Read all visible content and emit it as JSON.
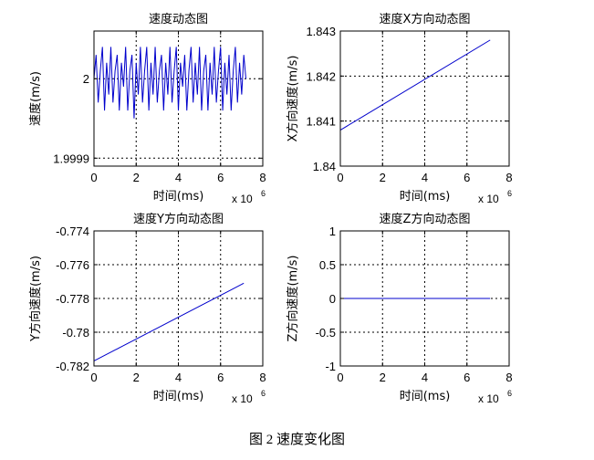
{
  "figure": {
    "caption": "图 2  速度变化图"
  },
  "colors": {
    "line": "#0000cc",
    "axis": "#000000",
    "background": "#ffffff"
  },
  "chart_data": [
    {
      "type": "line",
      "title": "速度动态图",
      "xlabel": "时间(ms)",
      "ylabel": "速度(m/s)",
      "x_multiplier": "x 10",
      "x_multiplier_exp": "6",
      "xlim": [
        0,
        8
      ],
      "ylim": [
        1.99989,
        2.00006
      ],
      "xticks": [
        0,
        2,
        4,
        6,
        8
      ],
      "xtick_labels": [
        "0",
        "2",
        "4",
        "6",
        "8"
      ],
      "yticks": [
        1.9999,
        2.0
      ],
      "ytick_labels": [
        "1.9999",
        "2"
      ],
      "grid": true,
      "series": [
        {
          "x": [
            0,
            0.1,
            0.2,
            0.3,
            0.4,
            0.5,
            0.6,
            0.7,
            0.8,
            0.9,
            1.0,
            1.1,
            1.2,
            1.3,
            1.4,
            1.5,
            1.6,
            1.7,
            1.8,
            1.9,
            2.0,
            2.1,
            2.2,
            2.3,
            2.4,
            2.5,
            2.6,
            2.7,
            2.8,
            2.9,
            3.0,
            3.1,
            3.2,
            3.3,
            3.4,
            3.5,
            3.6,
            3.7,
            3.8,
            3.9,
            4.0,
            4.1,
            4.2,
            4.3,
            4.4,
            4.5,
            4.6,
            4.7,
            4.8,
            4.9,
            5.0,
            5.1,
            5.2,
            5.3,
            5.4,
            5.5,
            5.6,
            5.7,
            5.8,
            5.9,
            6.0,
            6.1,
            6.2,
            6.3,
            6.4,
            6.5,
            6.6,
            6.7,
            6.8,
            6.9,
            7.0,
            7.1,
            7.2
          ],
          "y": [
            2.0,
            2.00003,
            1.99997,
            2.00001,
            2.00004,
            1.99996,
            2.00002,
            1.99998,
            2.00004,
            1.99997,
            2.00001,
            2.00003,
            1.99996,
            2.00002,
            1.99999,
            2.00004,
            1.99996,
            2.00001,
            2.00003,
            1.99995,
            2.00002,
            1.99998,
            2.00004,
            1.99997,
            2.00001,
            2.00004,
            1.99996,
            2.00002,
            1.99998,
            2.00004,
            1.99997,
            2.00001,
            2.00003,
            1.99996,
            2.00002,
            1.99998,
            2.00004,
            1.99997,
            2.00001,
            2.00004,
            1.99996,
            2.00002,
            1.99999,
            2.00003,
            1.99996,
            2.00001,
            2.00004,
            1.99997,
            2.00002,
            1.99998,
            2.00004,
            1.99996,
            2.00001,
            2.00003,
            1.99996,
            2.00002,
            1.99998,
            2.00004,
            1.99997,
            2.00001,
            2.00004,
            1.99996,
            2.00002,
            1.99998,
            2.00003,
            1.99996,
            2.00001,
            2.00004,
            1.99997,
            2.00002,
            1.99998,
            2.00003,
            2.0
          ]
        }
      ]
    },
    {
      "type": "line",
      "title": "速度X方向动态图",
      "xlabel": "时间(ms)",
      "ylabel": "X方向速度(m/s)",
      "x_multiplier": "x 10",
      "x_multiplier_exp": "6",
      "xlim": [
        0,
        8
      ],
      "ylim": [
        1.84,
        1.843
      ],
      "xticks": [
        0,
        2,
        4,
        6,
        8
      ],
      "xtick_labels": [
        "0",
        "2",
        "4",
        "6",
        "8"
      ],
      "yticks": [
        1.84,
        1.841,
        1.842,
        1.843
      ],
      "ytick_labels": [
        "1.84",
        "1.841",
        "1.842",
        "1.843"
      ],
      "grid": true,
      "series": [
        {
          "x": [
            0,
            7.1
          ],
          "y": [
            1.8408,
            1.8428
          ]
        }
      ]
    },
    {
      "type": "line",
      "title": "速度Y方向动态图",
      "xlabel": "时间(ms)",
      "ylabel": "Y方向速度(m/s)",
      "x_multiplier": "x 10",
      "x_multiplier_exp": "6",
      "xlim": [
        0,
        8
      ],
      "ylim": [
        -0.782,
        -0.774
      ],
      "xticks": [
        0,
        2,
        4,
        6,
        8
      ],
      "xtick_labels": [
        "0",
        "2",
        "4",
        "6",
        "8"
      ],
      "yticks": [
        -0.782,
        -0.78,
        -0.778,
        -0.776,
        -0.774
      ],
      "ytick_labels": [
        "-0.782",
        "-0.78",
        "-0.778",
        "-0.776",
        "-0.774"
      ],
      "grid": true,
      "series": [
        {
          "x": [
            0,
            7.1
          ],
          "y": [
            -0.7817,
            -0.7771
          ]
        }
      ]
    },
    {
      "type": "line",
      "title": "速度Z方向动态图",
      "xlabel": "时间(ms)",
      "ylabel": "Z方向速度(m/s)",
      "x_multiplier": "x 10",
      "x_multiplier_exp": "6",
      "xlim": [
        0,
        8
      ],
      "ylim": [
        -1,
        1
      ],
      "xticks": [
        0,
        2,
        4,
        6,
        8
      ],
      "xtick_labels": [
        "0",
        "2",
        "4",
        "6",
        "8"
      ],
      "yticks": [
        -1,
        -0.5,
        0,
        0.5,
        1
      ],
      "ytick_labels": [
        "-1",
        "-0.5",
        "0",
        "0.5",
        "1"
      ],
      "grid": true,
      "series": [
        {
          "x": [
            0,
            7.1
          ],
          "y": [
            0,
            0
          ]
        }
      ]
    }
  ]
}
